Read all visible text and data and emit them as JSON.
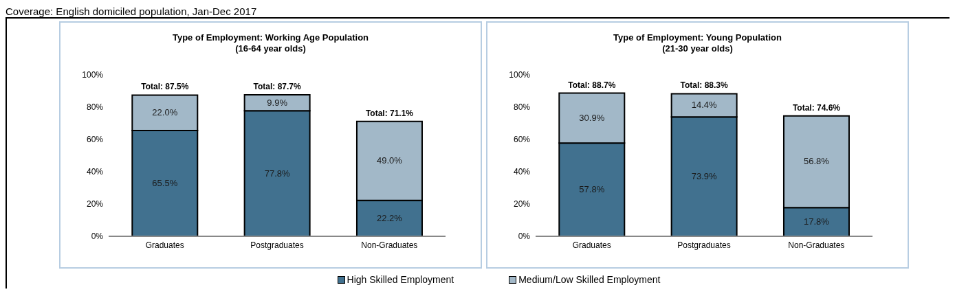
{
  "chart_data": [
    {
      "type": "bar",
      "stacked": true,
      "title": "Type of Employment:  Working Age Population\n(16-64 year olds)",
      "categories": [
        "Graduates",
        "Postgraduates",
        "Non-Graduates"
      ],
      "series": [
        {
          "name": "High Skilled Employment",
          "color": "#41718f",
          "values": [
            65.5,
            77.8,
            22.2
          ],
          "value_labels": [
            "65.5%",
            "77.8%",
            "22.2%"
          ]
        },
        {
          "name": "Medium/Low Skilled Employment",
          "color": "#a2b8c8",
          "values": [
            22.0,
            9.9,
            49.0
          ],
          "value_labels": [
            "22.0%",
            "9.9%",
            "49.0%"
          ]
        }
      ],
      "totals": [
        "Total: 87.5%",
        "Total: 87.7%",
        "Total: 71.1%"
      ],
      "ylim": [
        0,
        100
      ],
      "yticks": [
        {
          "value": 0,
          "label": "0%"
        },
        {
          "value": 20,
          "label": "20%"
        },
        {
          "value": 40,
          "label": "40%"
        },
        {
          "value": 60,
          "label": "60%"
        },
        {
          "value": 80,
          "label": "80%"
        },
        {
          "value": 100,
          "label": "100%"
        }
      ],
      "grid": false,
      "legend": "bottom",
      "annotations": [
        "Coverage: English domiciled population, Jan-Dec 2017"
      ]
    },
    {
      "type": "bar",
      "stacked": true,
      "title": "Type of Employment:  Young Population\n(21-30 year olds)",
      "categories": [
        "Graduates",
        "Postgraduates",
        "Non-Graduates"
      ],
      "series": [
        {
          "color": "#41718f",
          "values": [
            57.8,
            73.9,
            17.8
          ],
          "value_labels": [
            "57.8%",
            "73.9%",
            "17.8%"
          ]
        },
        {
          "color": "#a2b8c8",
          "values": [
            30.9,
            14.4,
            56.8
          ],
          "value_labels": [
            "30.9%",
            "14.4%",
            "56.8%"
          ]
        }
      ],
      "totals": [
        "Total: 88.7%",
        "Total: 88.3%",
        "Total: 74.6%"
      ],
      "ylim": [
        0,
        100
      ],
      "yticks": [
        {
          "value": 0,
          "label": "0%"
        },
        {
          "value": 20,
          "label": "20%"
        },
        {
          "value": 40,
          "label": "40%"
        },
        {
          "value": 60,
          "label": "60%"
        },
        {
          "value": 80,
          "label": "80%"
        },
        {
          "value": 100,
          "label": "100%"
        }
      ],
      "grid": false
    }
  ]
}
